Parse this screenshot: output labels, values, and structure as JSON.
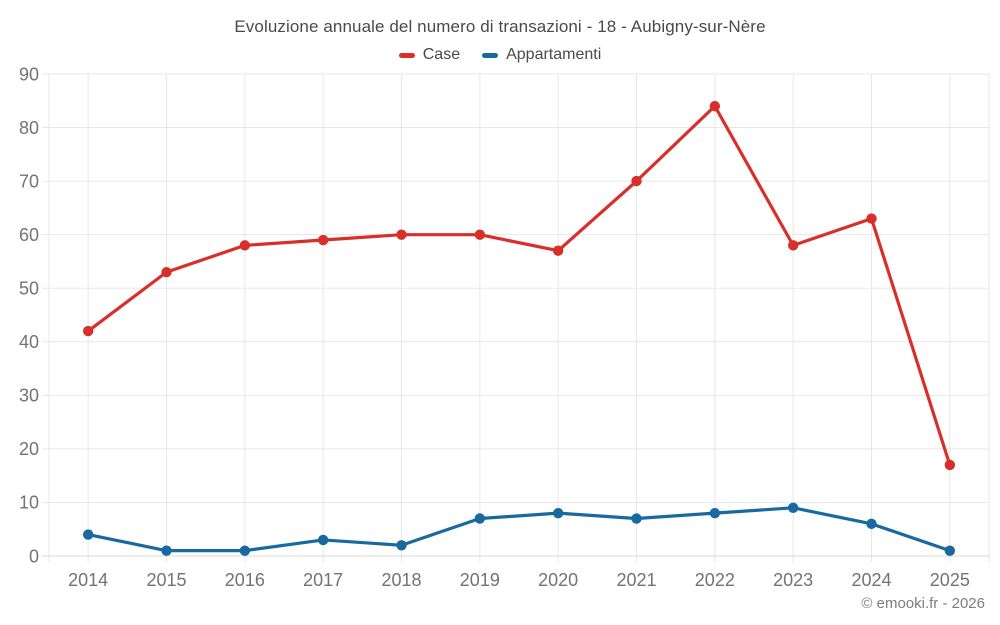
{
  "title": "Evoluzione annuale del numero di transazioni - 18 - Aubigny-sur-Nère",
  "footer_credit": "© emooki.fr - 2026",
  "colors": {
    "case_red": "#d92f2a",
    "appartamenti_blue": "#1769a0",
    "grid": "#e7e7e7",
    "axis": "#d9d9d9",
    "tick_label": "#737373",
    "title_text": "#4a4a4a"
  },
  "legend": {
    "items": [
      {
        "label": "Case",
        "color": "#d92f2a"
      },
      {
        "label": "Appartamenti",
        "color": "#1769a0"
      }
    ]
  },
  "chart_data": {
    "type": "line",
    "title": "Evoluzione annuale del numero di transazioni - 18 - Aubigny-sur-Nère",
    "categories": [
      "2014",
      "2015",
      "2016",
      "2017",
      "2018",
      "2019",
      "2020",
      "2021",
      "2022",
      "2023",
      "2024",
      "2025"
    ],
    "series": [
      {
        "name": "Case",
        "color": "#d92f2a",
        "values": [
          42,
          53,
          58,
          59,
          60,
          60,
          57,
          70,
          84,
          58,
          63,
          17
        ]
      },
      {
        "name": "Appartamenti",
        "color": "#1769a0",
        "values": [
          4,
          1,
          1,
          3,
          2,
          7,
          8,
          7,
          8,
          9,
          6,
          1
        ]
      }
    ],
    "xlabel": "",
    "ylabel": "",
    "ylim": [
      0,
      90
    ],
    "ytick_step": 10,
    "grid": true,
    "legend_position": "top"
  }
}
